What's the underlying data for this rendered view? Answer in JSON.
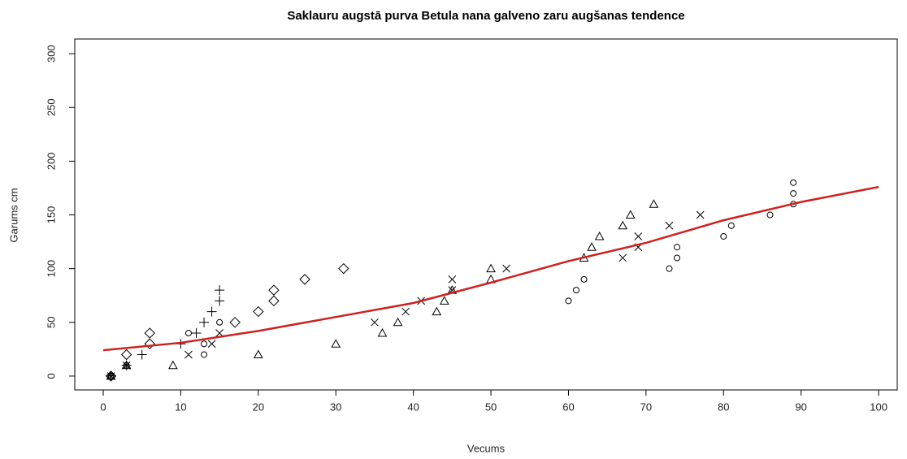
{
  "chart_data": {
    "type": "scatter",
    "title": "Saklauru augstā purva Betula nana galveno zaru augšanas tendence",
    "x_label": "Vecums",
    "y_label": "Garums cm",
    "xlim": [
      -3.67,
      102.4
    ],
    "ylim": [
      -12.9,
      313.7
    ],
    "xticks": [
      0,
      10,
      20,
      30,
      40,
      50,
      60,
      70,
      80,
      90,
      100
    ],
    "yticks": [
      0,
      50,
      100,
      150,
      200,
      250,
      300
    ],
    "series": [
      {
        "marker": "circle",
        "color": "#000000",
        "x": [
          1,
          3,
          11,
          13,
          13,
          15,
          60,
          61,
          62,
          73,
          74,
          74,
          80,
          81,
          86,
          89,
          89,
          89
        ],
        "values": [
          0,
          10,
          40,
          20,
          30,
          50,
          70,
          80,
          90,
          100,
          110,
          120,
          130,
          140,
          150,
          160,
          170,
          180
        ]
      },
      {
        "marker": "triangle",
        "color": "#000000",
        "x": [
          1,
          3,
          9,
          20,
          30,
          36,
          38,
          43,
          44,
          45,
          50,
          50,
          62,
          63,
          64,
          67,
          68,
          71
        ],
        "values": [
          0,
          10,
          10,
          20,
          30,
          40,
          50,
          60,
          70,
          80,
          90,
          100,
          110,
          120,
          130,
          140,
          150,
          160
        ]
      },
      {
        "marker": "plus",
        "color": "#000000",
        "x": [
          1,
          3,
          5,
          10,
          12,
          13,
          14,
          15,
          15
        ],
        "values": [
          0,
          10,
          20,
          30,
          40,
          50,
          60,
          70,
          80
        ]
      },
      {
        "marker": "cross",
        "color": "#000000",
        "x": [
          1,
          3,
          11,
          14,
          15,
          35,
          39,
          41,
          45,
          45,
          52,
          67,
          69,
          69,
          73,
          77
        ],
        "values": [
          0,
          10,
          20,
          30,
          40,
          50,
          60,
          70,
          80,
          90,
          100,
          110,
          120,
          130,
          140,
          150
        ]
      },
      {
        "marker": "diamond",
        "color": "#000000",
        "x": [
          1,
          3,
          6,
          6,
          17,
          20,
          22,
          22,
          26,
          31
        ],
        "values": [
          0,
          20,
          30,
          40,
          50,
          60,
          70,
          80,
          90,
          100
        ]
      }
    ],
    "trend": {
      "color": "#cc2222",
      "x": [
        0,
        10,
        20,
        30,
        40,
        50,
        60,
        70,
        80,
        90,
        100
      ],
      "values": [
        24,
        31,
        42,
        55,
        68,
        87,
        107,
        124,
        145,
        162,
        176
      ]
    }
  }
}
